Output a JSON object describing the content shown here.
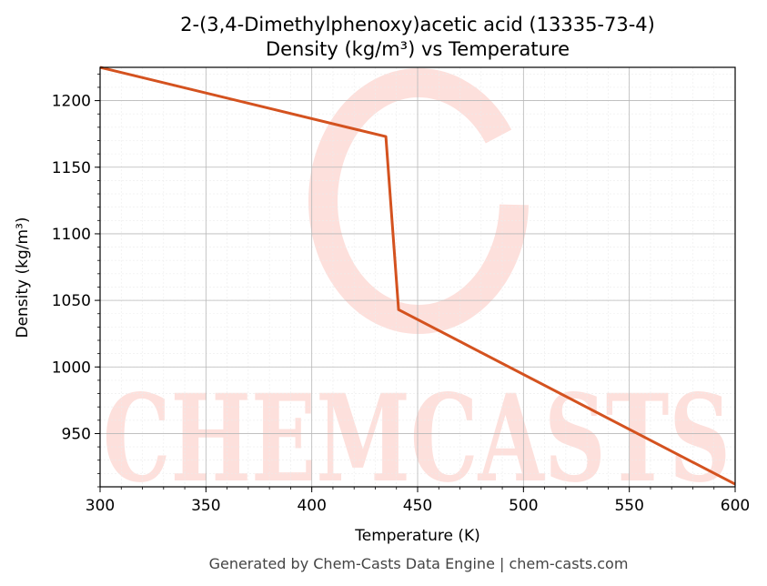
{
  "chart_data": {
    "type": "line",
    "title": "2-(3,4-Dimethylphenoxy)acetic acid (13335-73-4)",
    "subtitle": "Density (kg/m³) vs Temperature",
    "xlabel": "Temperature (K)",
    "ylabel": "Density (kg/m³)",
    "xlim": [
      300,
      600
    ],
    "ylim": [
      910,
      1225
    ],
    "xticks": [
      300,
      350,
      400,
      450,
      500,
      550,
      600
    ],
    "yticks": [
      950,
      1000,
      1050,
      1100,
      1150,
      1200
    ],
    "grid": true,
    "series": [
      {
        "color": "#d4521f",
        "x": [
          300,
          435,
          441,
          600
        ],
        "y": [
          1225,
          1173,
          1043,
          912
        ]
      }
    ]
  },
  "watermark": {
    "text": "CHEMCASTS",
    "color": "#fde0dc"
  },
  "footer": "Generated by Chem-Casts Data Engine | chem-casts.com"
}
